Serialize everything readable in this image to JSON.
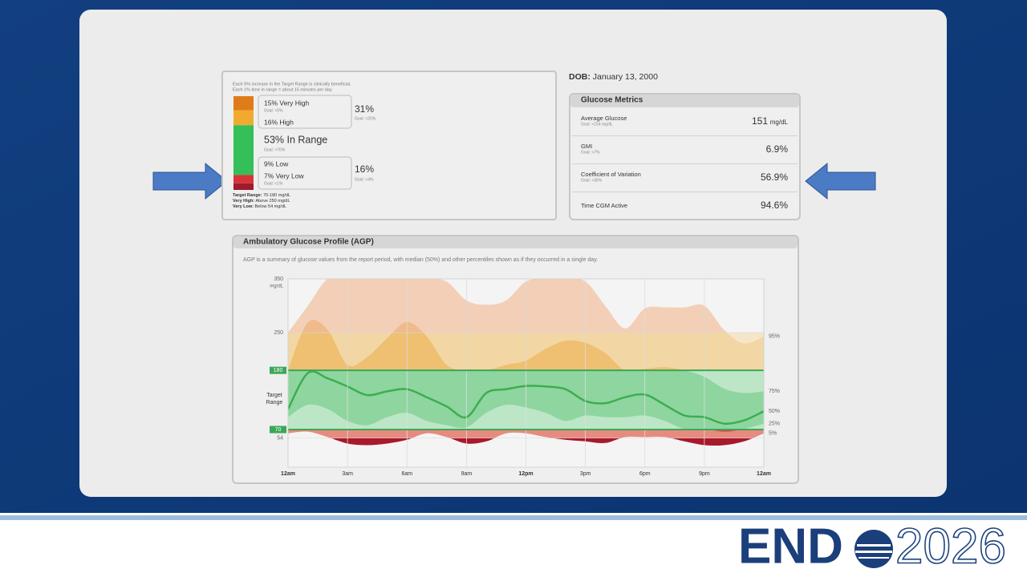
{
  "slide": {
    "logo_text": "END",
    "logo_year": "2026"
  },
  "tir": {
    "notes": [
      "Each 5% increase in the Target Range is clinically beneficial.",
      "Each 1% time in range = about 15 minutes per day."
    ],
    "footnotes": [
      {
        "term": "Target Range:",
        "text": "70-180 mg/dL"
      },
      {
        "term": "Very High:",
        "text": "Above 250 mg/dL"
      },
      {
        "term": "Very Low:",
        "text": "Below 54 mg/dL"
      }
    ]
  },
  "patient": {
    "dob_label": "DOB:",
    "dob": "January 13, 2000"
  },
  "metrics": {
    "title": "Glucose Metrics",
    "rows": [
      {
        "name": "Average Glucose",
        "goal": "Goal: <154 mg/dL",
        "value": "151",
        "unit": "mg/dL"
      },
      {
        "name": "GMI",
        "goal": "Goal: <7%",
        "value": "6.9%"
      },
      {
        "name": "Coefficient of Variation",
        "goal": "Goal: <36%",
        "value": "56.9%"
      },
      {
        "name": "Time CGM Active",
        "value": "94.6%"
      }
    ]
  },
  "agp": {
    "title": "Ambulatory Glucose Profile (AGP)",
    "description": "AGP is a summary of glucose values from the report period, with median (50%) and other percentiles shown as if they occurred in a single day."
  },
  "chart_data": [
    {
      "type": "stacked-bar",
      "series": [
        {
          "values": [
            15
          ],
          "value_labels": [
            "15% Very High"
          ],
          "goal": "Goal: <5%",
          "color": "#e07b1a"
        },
        {
          "values": [
            16
          ],
          "value_labels": [
            "16% High"
          ],
          "color": "#f0ab2f"
        },
        {
          "values": [
            53
          ],
          "value_labels": [
            "53% In Range"
          ],
          "goal": "Goal: >70%",
          "color": "#35bf59"
        },
        {
          "values": [
            9
          ],
          "value_labels": [
            "9% Low"
          ],
          "color": "#d7343a"
        },
        {
          "values": [
            7
          ],
          "value_labels": [
            "7% Very Low"
          ],
          "goal": "Goal: <1%",
          "color": "#a01a2e"
        }
      ],
      "groups": [
        {
          "label": "31%",
          "goal": "Goal: <25%"
        },
        {
          "label": "16%",
          "goal": "Goal: <4%"
        }
      ]
    },
    {
      "type": "percentile-band",
      "x": [
        0,
        1,
        2,
        3,
        4,
        5,
        6,
        7,
        8,
        9,
        10,
        11,
        12,
        13,
        14,
        15,
        16,
        17,
        18,
        19,
        20,
        21,
        22,
        23,
        24
      ],
      "xlim": [
        0,
        24
      ],
      "xticks": [
        {
          "value": 0,
          "label": "12am"
        },
        {
          "value": 3,
          "label": "3am"
        },
        {
          "value": 6,
          "label": "6am"
        },
        {
          "value": 9,
          "label": "9am"
        },
        {
          "value": 12,
          "label": "12pm"
        },
        {
          "value": 15,
          "label": "3pm"
        },
        {
          "value": 18,
          "label": "6pm"
        },
        {
          "value": 21,
          "label": "9pm"
        },
        {
          "value": 24,
          "label": "12am"
        }
      ],
      "ylim": [
        0,
        350
      ],
      "yticks": [
        54,
        70,
        180,
        250,
        350
      ],
      "y_unit": "mg/dL",
      "target": [
        70,
        180
      ],
      "target_label": "Target Range",
      "target_color": "#3aa757",
      "series": [
        {
          "name": "95%",
          "values": [
            250,
            300,
            350,
            350,
            350,
            350,
            350,
            350,
            345,
            310,
            302,
            310,
            345,
            350,
            350,
            345,
            300,
            258,
            295,
            297,
            297,
            300,
            255,
            230,
            243
          ]
        },
        {
          "name": "75%",
          "values": [
            180,
            269,
            255,
            190,
            205,
            240,
            270,
            243,
            190,
            180,
            180,
            190,
            198,
            220,
            235,
            231,
            212,
            180,
            183,
            186,
            180,
            168,
            146,
            138,
            141
          ]
        },
        {
          "name": "50%",
          "color": "#3cae50",
          "values": [
            108,
            175,
            165,
            150,
            134,
            141,
            145,
            130,
            113,
            93,
            138,
            145,
            151,
            150,
            145,
            123,
            119,
            130,
            135,
            116,
            96,
            93,
            81,
            87,
            104
          ]
        },
        {
          "name": "25%",
          "values": [
            93,
            116,
            108,
            86,
            78,
            93,
            101,
            86,
            78,
            74,
            101,
            116,
            111,
            101,
            86,
            96,
            93,
            93,
            96,
            86,
            71,
            71,
            66,
            71,
            81
          ]
        },
        {
          "name": "5%",
          "values": [
            63,
            66,
            56,
            44,
            41,
            44,
            51,
            63,
            56,
            44,
            48,
            63,
            63,
            56,
            51,
            48,
            45,
            56,
            56,
            56,
            48,
            41,
            41,
            48,
            63
          ]
        }
      ],
      "zone_colors": {
        "background": [
          "#f4f4f4",
          "#f4f4f4",
          "#90d6a1",
          "#f6e6c8",
          "#f4f4f4"
        ],
        "outer": [
          "#a8192b",
          "#e78a80",
          "#bde6c7",
          "#f2d6a3",
          "#f2cfb6"
        ],
        "inner": [
          "#8f1224",
          "#d44a48",
          "#8fd5a0",
          "#efbf72",
          "#efbb8c"
        ]
      }
    }
  ]
}
